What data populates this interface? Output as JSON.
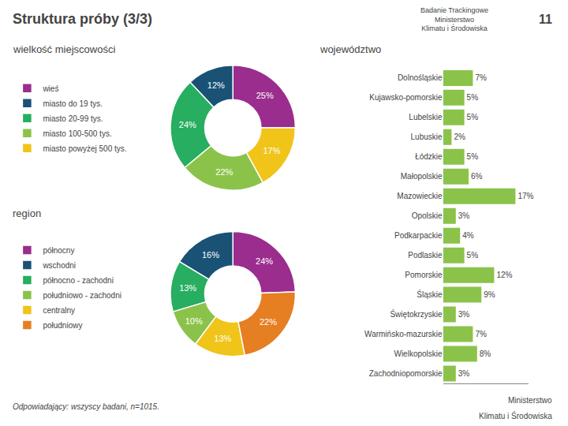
{
  "title": "Struktura próby (3/3)",
  "subtitle": "Badanie Trackingowe\nMinisterstwo\nKlimatu i Środowiska",
  "annotations": [
    "11",
    "Odpowiadający: wszyscy badani, n=1015.",
    "Ministerstwo",
    "Klimatu i Środowiska"
  ],
  "chart_data": [
    {
      "type": "pie",
      "title": "wielkość miejscowości",
      "categories": [
        "wieś",
        "miasto do 19 tys.",
        "miasto 20-99 tys.",
        "miasto 100-500 tys.",
        "miasto powyżej 500 tys."
      ],
      "values": [
        25,
        12,
        24,
        22,
        17
      ],
      "value_labels": [
        "25%",
        "12%",
        "24%",
        "22%",
        "17%"
      ],
      "colors": [
        "#9b2d8e",
        "#1a5276",
        "#27ae60",
        "#8bc34a",
        "#f0c419"
      ],
      "data_labels": true,
      "legend": "left"
    },
    {
      "type": "pie",
      "title": "region",
      "categories": [
        "północny",
        "wschodni",
        "północno - zachodni",
        "południowo - zachodni",
        "centralny",
        "południowy"
      ],
      "values": [
        24,
        16,
        13,
        10,
        13,
        22
      ],
      "value_labels": [
        "24%",
        "16%",
        "13%",
        "10%",
        "13%",
        "22%"
      ],
      "colors": [
        "#9b2d8e",
        "#1a5276",
        "#27ae60",
        "#8bc34a",
        "#f0c419",
        "#e67e22"
      ],
      "data_labels": true,
      "legend": "left"
    },
    {
      "type": "bar",
      "title": "województwo",
      "orientation": "horizontal",
      "categories": [
        "Dolnośląskie",
        "Kujawsko-pomorskie",
        "Lubelskie",
        "Lubuskie",
        "Łódzkie",
        "Małopolskie",
        "Mazowieckie",
        "Opolskie",
        "Podkarpackie",
        "Podlaskie",
        "Pomorskie",
        "Śląskie",
        "Świętokrzyskie",
        "Warmińsko-mazurskie",
        "Wielkopolskie",
        "Zachodniopomorskie"
      ],
      "values": [
        7,
        5,
        5,
        2,
        5,
        6,
        17,
        3,
        4,
        5,
        12,
        9,
        3,
        7,
        8,
        3
      ],
      "value_labels": [
        "7%",
        "5%",
        "5%",
        "2%",
        "5%",
        "6%",
        "17%",
        "3%",
        "4%",
        "5%",
        "12%",
        "9%",
        "3%",
        "7%",
        "8%",
        "3%"
      ],
      "color": "#8bc34a",
      "xlim": [
        0,
        20
      ],
      "data_labels": true,
      "tick_labels": "y",
      "grid": false
    }
  ]
}
